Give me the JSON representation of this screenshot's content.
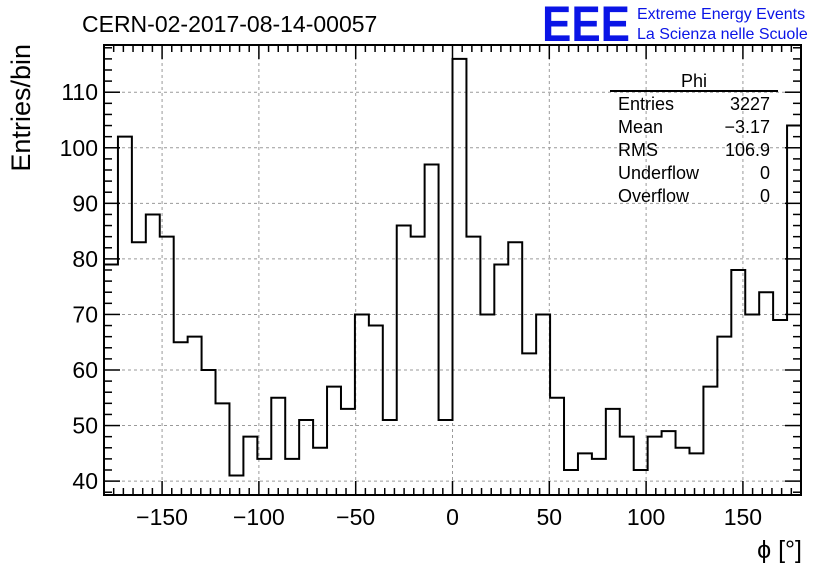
{
  "header": {
    "title": "CERN-02-2017-08-14-00057",
    "logo_text": "EEE",
    "logo_line1": "Extreme Energy Events",
    "logo_line2": "La Scienza nelle Scuole"
  },
  "colors": {
    "logo": "#0a14e6",
    "line": "#000000",
    "grid": "#9a9a9a"
  },
  "stats": {
    "title": "Phi",
    "rows": [
      {
        "label": "Entries",
        "value": "3227"
      },
      {
        "label": "Mean",
        "value": "−3.17"
      },
      {
        "label": "RMS",
        "value": "106.9"
      },
      {
        "label": "Underflow",
        "value": "0"
      },
      {
        "label": "Overflow",
        "value": "0"
      }
    ]
  },
  "chart_data": {
    "type": "histogram",
    "title": "CERN-02-2017-08-14-00057",
    "xlabel": "ϕ [°]",
    "ylabel": "Entries/bin",
    "xlim": [
      -180,
      180
    ],
    "ylim": [
      37.5,
      118.5
    ],
    "grid": true,
    "bin_width": 7.2,
    "bin_edges_start": -180,
    "x_ticks": [
      -150,
      -100,
      -50,
      0,
      50,
      100,
      150
    ],
    "x_tick_labels": [
      "−150",
      "−100",
      "−50",
      "0",
      "50",
      "100",
      "150"
    ],
    "y_ticks": [
      40,
      50,
      60,
      70,
      80,
      90,
      100,
      110
    ],
    "y_tick_labels": [
      "40",
      "50",
      "60",
      "70",
      "80",
      "90",
      "100",
      "110"
    ],
    "values": [
      79,
      102,
      83,
      88,
      84,
      65,
      66,
      60,
      54,
      41,
      48,
      44,
      55,
      44,
      51,
      46,
      57,
      53,
      70,
      68,
      51,
      86,
      84,
      97,
      51,
      116,
      84,
      70,
      79,
      83,
      63,
      70,
      55,
      42,
      45,
      44,
      53,
      48,
      42,
      48,
      49,
      46,
      45,
      57,
      66,
      78,
      70,
      74,
      69,
      104
    ]
  }
}
